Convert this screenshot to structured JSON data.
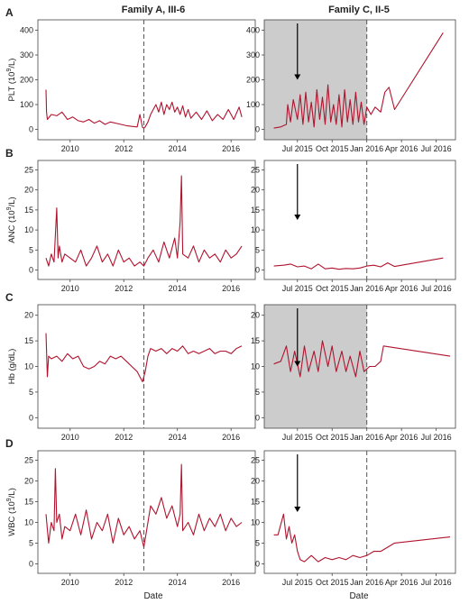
{
  "columns": {
    "left_title": "Family A, III-6",
    "right_title": "Family C, II-5"
  },
  "xlabel": "Date",
  "colors": {
    "series": "#b0142e",
    "shade": "#cccccc",
    "dashed": "#555555",
    "arrow": "#000000",
    "frame": "#444444"
  },
  "rows": [
    {
      "letter": "A",
      "ylabel_main": "PLT (10",
      "ylabel_sup": "9",
      "ylabel_tail": "/L)",
      "yticks": [
        "0",
        "100",
        "200",
        "300",
        "400"
      ]
    },
    {
      "letter": "B",
      "ylabel_main": "ANC (10",
      "ylabel_sup": "9",
      "ylabel_tail": "/L)",
      "yticks": [
        "0",
        "5",
        "10",
        "15",
        "20",
        "25"
      ]
    },
    {
      "letter": "C",
      "ylabel_main": "Hb (g/dL)",
      "ylabel_sup": "",
      "ylabel_tail": "",
      "yticks": [
        "0",
        "5",
        "10",
        "15",
        "20"
      ]
    },
    {
      "letter": "D",
      "ylabel_main": "WBC (10",
      "ylabel_sup": "9",
      "ylabel_tail": "/L)",
      "yticks": [
        "0",
        "5",
        "10",
        "15",
        "20",
        "25"
      ]
    }
  ],
  "left_xticks": [
    "2010",
    "2012",
    "2014",
    "2016"
  ],
  "right_xticks": [
    "Jul 2015",
    "Oct 2015",
    "Jan 2016",
    "Apr 2016",
    "Jul 2016"
  ],
  "chart_data": [
    {
      "type": "line",
      "panel": "A-left",
      "xlabel": "",
      "ylabel": "PLT (10^9/L)",
      "xlim": [
        2009.0,
        2016.7
      ],
      "ylim": [
        -20,
        420
      ],
      "yticks": [
        0,
        100,
        200,
        300,
        400
      ],
      "xticks": [
        2010,
        2012,
        2014,
        2016
      ],
      "dashed_x": 2012.75,
      "x": [
        2009.1,
        2009.12,
        2009.15,
        2009.3,
        2009.5,
        2009.7,
        2009.9,
        2010.1,
        2010.3,
        2010.5,
        2010.7,
        2010.9,
        2011.1,
        2011.3,
        2011.5,
        2011.7,
        2011.9,
        2012.1,
        2012.3,
        2012.5,
        2012.6,
        2012.7,
        2012.75,
        2012.8,
        2012.9,
        2013.0,
        2013.1,
        2013.2,
        2013.3,
        2013.4,
        2013.5,
        2013.6,
        2013.7,
        2013.8,
        2013.9,
        2014.0,
        2014.1,
        2014.2,
        2014.3,
        2014.4,
        2014.5,
        2014.7,
        2014.9,
        2015.1,
        2015.3,
        2015.5,
        2015.7,
        2015.9,
        2016.1,
        2016.3,
        2016.4
      ],
      "y": [
        160,
        70,
        40,
        60,
        55,
        70,
        40,
        50,
        35,
        30,
        40,
        25,
        35,
        20,
        30,
        25,
        20,
        15,
        12,
        10,
        60,
        8,
        5,
        10,
        30,
        60,
        80,
        100,
        70,
        110,
        60,
        100,
        80,
        110,
        70,
        90,
        60,
        95,
        50,
        80,
        45,
        70,
        40,
        75,
        35,
        60,
        40,
        80,
        40,
        90,
        50
      ]
    },
    {
      "type": "line",
      "panel": "A-right",
      "xlabel": "",
      "ylabel": "",
      "xlim": [
        2015.3,
        2016.6
      ],
      "ylim": [
        -20,
        420
      ],
      "yticks": [
        0,
        100,
        200,
        300,
        400
      ],
      "xtick_values": [
        2015.5,
        2015.75,
        2016.0,
        2016.25,
        2016.5
      ],
      "xtick_labels": [
        "Jul 2015",
        "Oct 2015",
        "Jan 2016",
        "Apr 2016",
        "Jul 2016"
      ],
      "dashed_x": 2016.0,
      "shade_range": [
        2015.3,
        2016.0
      ],
      "arrow_x": 2015.5,
      "x": [
        2015.33,
        2015.38,
        2015.42,
        2015.43,
        2015.45,
        2015.47,
        2015.5,
        2015.52,
        2015.54,
        2015.56,
        2015.58,
        2015.6,
        2015.62,
        2015.64,
        2015.66,
        2015.68,
        2015.7,
        2015.72,
        2015.74,
        2015.76,
        2015.78,
        2015.8,
        2015.82,
        2015.84,
        2015.86,
        2015.88,
        2015.9,
        2015.92,
        2015.94,
        2015.96,
        2015.98,
        2016.0,
        2016.03,
        2016.06,
        2016.1,
        2016.13,
        2016.16,
        2016.2,
        2016.55
      ],
      "y": [
        5,
        10,
        20,
        100,
        30,
        120,
        40,
        140,
        20,
        150,
        30,
        110,
        10,
        160,
        40,
        130,
        20,
        180,
        30,
        100,
        20,
        140,
        10,
        160,
        30,
        120,
        20,
        150,
        30,
        110,
        20,
        90,
        60,
        90,
        70,
        150,
        170,
        80,
        390
      ]
    },
    {
      "type": "line",
      "panel": "B-left",
      "xlabel": "",
      "ylabel": "ANC (10^9/L)",
      "xlim": [
        2009.0,
        2016.7
      ],
      "ylim": [
        -1,
        26
      ],
      "yticks": [
        0,
        5,
        10,
        15,
        20,
        25
      ],
      "xticks": [
        2010,
        2012,
        2014,
        2016
      ],
      "dashed_x": 2012.75,
      "x": [
        2009.1,
        2009.2,
        2009.3,
        2009.4,
        2009.5,
        2009.55,
        2009.6,
        2009.7,
        2009.8,
        2010.0,
        2010.2,
        2010.4,
        2010.6,
        2010.8,
        2011.0,
        2011.2,
        2011.4,
        2011.6,
        2011.8,
        2012.0,
        2012.2,
        2012.4,
        2012.6,
        2012.75,
        2012.9,
        2013.1,
        2013.3,
        2013.5,
        2013.7,
        2013.9,
        2014.0,
        2014.1,
        2014.15,
        2014.2,
        2014.4,
        2014.6,
        2014.8,
        2015.0,
        2015.2,
        2015.4,
        2015.6,
        2015.8,
        2016.0,
        2016.2,
        2016.4
      ],
      "y": [
        3,
        1,
        4,
        2,
        15.5,
        3,
        6,
        2,
        4,
        3,
        2,
        5,
        1,
        3,
        6,
        2,
        4,
        1,
        5,
        2,
        3,
        1,
        2,
        1,
        3,
        5,
        2,
        7,
        3,
        8,
        3,
        12,
        23.5,
        4,
        3,
        6,
        2,
        5,
        3,
        4,
        2,
        5,
        3,
        4,
        6
      ]
    },
    {
      "type": "line",
      "panel": "B-right",
      "xlabel": "",
      "ylabel": "",
      "xlim": [
        2015.3,
        2016.6
      ],
      "ylim": [
        -1,
        26
      ],
      "yticks": [
        0,
        5,
        10,
        15,
        20,
        25
      ],
      "xtick_values": [
        2015.5,
        2015.75,
        2016.0,
        2016.25,
        2016.5
      ],
      "xtick_labels": [
        "Jul 2015",
        "Oct 2015",
        "Jan 2016",
        "Apr 2016",
        "Jul 2016"
      ],
      "dashed_x": 2016.0,
      "arrow_x": 2015.5,
      "x": [
        2015.33,
        2015.4,
        2015.45,
        2015.5,
        2015.55,
        2015.6,
        2015.65,
        2015.7,
        2015.75,
        2015.8,
        2015.85,
        2015.9,
        2015.95,
        2016.0,
        2016.05,
        2016.1,
        2016.15,
        2016.2,
        2016.55
      ],
      "y": [
        1,
        1.2,
        1.5,
        0.8,
        1,
        0.3,
        1.5,
        0.3,
        0.5,
        0.2,
        0.4,
        0.3,
        0.5,
        1,
        1.2,
        0.8,
        1.8,
        0.9,
        3
      ]
    },
    {
      "type": "line",
      "panel": "C-left",
      "xlabel": "",
      "ylabel": "Hb (g/dL)",
      "xlim": [
        2009.0,
        2016.7
      ],
      "ylim": [
        -1,
        21
      ],
      "yticks": [
        0,
        5,
        10,
        15,
        20
      ],
      "xticks": [
        2010,
        2012,
        2014,
        2016
      ],
      "dashed_x": 2012.75,
      "x": [
        2009.1,
        2009.15,
        2009.2,
        2009.3,
        2009.5,
        2009.7,
        2009.9,
        2010.1,
        2010.3,
        2010.5,
        2010.7,
        2010.9,
        2011.1,
        2011.3,
        2011.5,
        2011.7,
        2011.9,
        2012.1,
        2012.3,
        2012.5,
        2012.7,
        2012.8,
        2012.9,
        2013.0,
        2013.2,
        2013.4,
        2013.6,
        2013.8,
        2014.0,
        2014.2,
        2014.4,
        2014.6,
        2014.8,
        2015.0,
        2015.2,
        2015.4,
        2015.6,
        2015.8,
        2016.0,
        2016.2,
        2016.4
      ],
      "y": [
        16.5,
        8,
        12,
        11.5,
        12,
        11,
        12.5,
        11.5,
        12,
        10,
        9.5,
        10,
        11,
        10.5,
        12,
        11.5,
        12,
        11,
        10,
        9,
        7,
        9,
        12,
        13.5,
        13,
        13.5,
        12.5,
        13.5,
        13,
        14,
        12.5,
        13,
        12.5,
        13,
        13.5,
        12.5,
        13,
        13,
        12.5,
        13.5,
        14
      ]
    },
    {
      "type": "line",
      "panel": "C-right",
      "xlabel": "",
      "ylabel": "",
      "xlim": [
        2015.3,
        2016.6
      ],
      "ylim": [
        -1,
        21
      ],
      "yticks": [
        0,
        5,
        10,
        15,
        20
      ],
      "xtick_values": [
        2015.5,
        2015.75,
        2016.0,
        2016.25,
        2016.5
      ],
      "xtick_labels": [
        "Jul 2015",
        "Oct 2015",
        "Jan 2016",
        "Apr 2016",
        "Jul 2016"
      ],
      "dashed_x": 2016.0,
      "shade_range": [
        2015.3,
        2016.0
      ],
      "arrow_x": 2015.5,
      "x": [
        2015.33,
        2015.38,
        2015.42,
        2015.45,
        2015.48,
        2015.52,
        2015.55,
        2015.58,
        2015.62,
        2015.65,
        2015.68,
        2015.72,
        2015.75,
        2015.78,
        2015.82,
        2015.85,
        2015.88,
        2015.92,
        2015.95,
        2015.98,
        2016.02,
        2016.06,
        2016.1,
        2016.12,
        2016.6
      ],
      "y": [
        10.5,
        11,
        14,
        9,
        13,
        8,
        14,
        9,
        13,
        9,
        15,
        10,
        14,
        9,
        13,
        9,
        12,
        8,
        13,
        9,
        10,
        10,
        11,
        14,
        12
      ]
    },
    {
      "type": "line",
      "panel": "D-left",
      "xlabel": "Date",
      "ylabel": "WBC (10^9/L)",
      "xlim": [
        2009.0,
        2016.7
      ],
      "ylim": [
        -1,
        26
      ],
      "yticks": [
        0,
        5,
        10,
        15,
        20,
        25
      ],
      "xticks": [
        2010,
        2012,
        2014,
        2016
      ],
      "dashed_x": 2012.75,
      "x": [
        2009.1,
        2009.2,
        2009.3,
        2009.4,
        2009.45,
        2009.5,
        2009.6,
        2009.7,
        2009.8,
        2010.0,
        2010.2,
        2010.4,
        2010.6,
        2010.8,
        2011.0,
        2011.2,
        2011.4,
        2011.6,
        2011.8,
        2012.0,
        2012.2,
        2012.4,
        2012.6,
        2012.75,
        2012.9,
        2013.0,
        2013.2,
        2013.4,
        2013.6,
        2013.8,
        2014.0,
        2014.1,
        2014.15,
        2014.2,
        2014.4,
        2014.6,
        2014.8,
        2015.0,
        2015.2,
        2015.4,
        2015.6,
        2015.8,
        2016.0,
        2016.2,
        2016.4
      ],
      "y": [
        12,
        5,
        10,
        8,
        23,
        10,
        12,
        6,
        9,
        8,
        12,
        7,
        13,
        6,
        10,
        8,
        12,
        5,
        11,
        7,
        9,
        6,
        8,
        4,
        10,
        14,
        12,
        16,
        11,
        14,
        9,
        12,
        24,
        8,
        10,
        7,
        12,
        8,
        11,
        9,
        12,
        8,
        11,
        9,
        10
      ]
    },
    {
      "type": "line",
      "panel": "D-right",
      "xlabel": "Date",
      "ylabel": "",
      "xlim": [
        2015.3,
        2016.6
      ],
      "ylim": [
        -1,
        26
      ],
      "yticks": [
        0,
        5,
        10,
        15,
        20,
        25
      ],
      "xtick_values": [
        2015.5,
        2015.75,
        2016.0,
        2016.25,
        2016.5
      ],
      "xtick_labels": [
        "Jul 2015",
        "Oct 2015",
        "Jan 2016",
        "Apr 2016",
        "Jul 2016"
      ],
      "dashed_x": 2016.0,
      "arrow_x": 2015.5,
      "x": [
        2015.33,
        2015.36,
        2015.4,
        2015.42,
        2015.44,
        2015.46,
        2015.48,
        2015.5,
        2015.52,
        2015.55,
        2015.6,
        2015.65,
        2015.7,
        2015.75,
        2015.8,
        2015.85,
        2015.9,
        2015.95,
        2016.0,
        2016.05,
        2016.1,
        2016.15,
        2016.2,
        2016.6
      ],
      "y": [
        7,
        7,
        12,
        6,
        9,
        5,
        7,
        3,
        1,
        0.5,
        2,
        0.5,
        1.5,
        1,
        1.5,
        1,
        2,
        1.5,
        2,
        3,
        3,
        4,
        5,
        6.5
      ]
    }
  ]
}
